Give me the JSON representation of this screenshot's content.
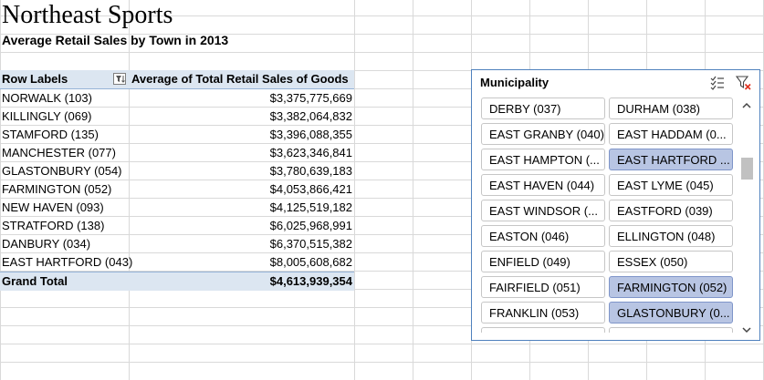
{
  "title": "Northeast Sports",
  "subtitle": "Average Retail Sales by Town in 2013",
  "pivot": {
    "header_label": "Row Labels",
    "header_value": "Average of Total Retail Sales of Goods",
    "rows": [
      {
        "label": "NORWALK (103)",
        "value": "$3,375,775,669"
      },
      {
        "label": "KILLINGLY (069)",
        "value": "$3,382,064,832"
      },
      {
        "label": "STAMFORD (135)",
        "value": "$3,396,088,355"
      },
      {
        "label": "MANCHESTER (077)",
        "value": "$3,623,346,841"
      },
      {
        "label": "GLASTONBURY (054)",
        "value": "$3,780,639,183"
      },
      {
        "label": "FARMINGTON (052)",
        "value": "$4,053,866,421"
      },
      {
        "label": "NEW HAVEN (093)",
        "value": "$4,125,519,182"
      },
      {
        "label": "STRATFORD (138)",
        "value": "$6,025,968,991"
      },
      {
        "label": "DANBURY (034)",
        "value": "$6,370,515,382"
      },
      {
        "label": "EAST HARTFORD (043)",
        "value": "$8,005,608,682"
      }
    ],
    "total_label": "Grand Total",
    "total_value": "$4,613,939,354"
  },
  "slicer": {
    "title": "Municipality",
    "items": [
      {
        "label": "DERBY (037)",
        "selected": false
      },
      {
        "label": "DURHAM (038)",
        "selected": false
      },
      {
        "label": "EAST GRANBY (040)",
        "selected": false
      },
      {
        "label": "EAST HADDAM (0...",
        "selected": false
      },
      {
        "label": "EAST HAMPTON (...",
        "selected": false
      },
      {
        "label": "EAST HARTFORD ...",
        "selected": true
      },
      {
        "label": "EAST HAVEN (044)",
        "selected": false
      },
      {
        "label": "EAST LYME (045)",
        "selected": false
      },
      {
        "label": "EAST WINDSOR (...",
        "selected": false
      },
      {
        "label": "EASTFORD (039)",
        "selected": false
      },
      {
        "label": "EASTON (046)",
        "selected": false
      },
      {
        "label": "ELLINGTON (048)",
        "selected": false
      },
      {
        "label": "ENFIELD (049)",
        "selected": false
      },
      {
        "label": "ESSEX (050)",
        "selected": false
      },
      {
        "label": "FAIRFIELD (051)",
        "selected": false
      },
      {
        "label": "FARMINGTON (052)",
        "selected": true
      },
      {
        "label": "FRANKLIN (053)",
        "selected": false
      },
      {
        "label": "GLASTONBURY (0...",
        "selected": true
      },
      {
        "label": "",
        "selected": false
      },
      {
        "label": "",
        "selected": false
      }
    ],
    "icons": {
      "multi_select": "multi-select-icon",
      "clear_filter": "clear-filter-icon"
    }
  },
  "colors": {
    "pivot_header_bg": "#dce6f1",
    "selected_item_bg": "#b8c5e3",
    "clear_filter_x": "#e0301e",
    "slicer_border": "#4f81bd"
  }
}
